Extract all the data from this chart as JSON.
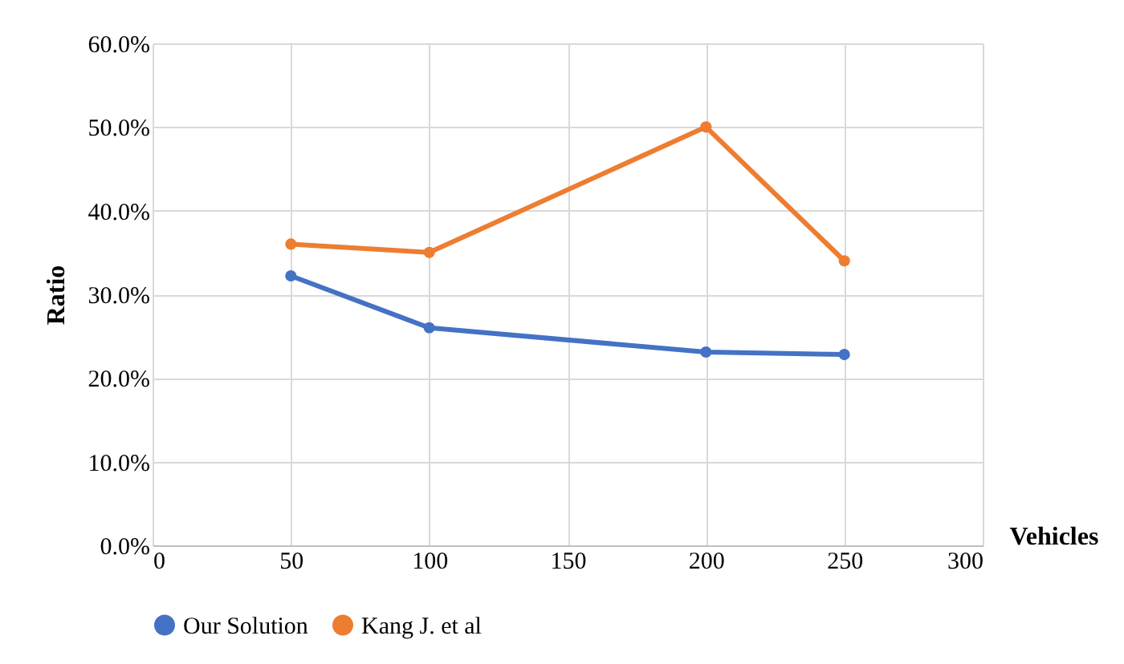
{
  "chart_data": {
    "type": "line",
    "xlabel": "Vehicles",
    "ylabel": "Ratio",
    "x": [
      50,
      100,
      200,
      250
    ],
    "series": [
      {
        "name": "Our Solution",
        "color": "#4472c4",
        "values": [
          32.2,
          26,
          23.1,
          22.8
        ]
      },
      {
        "name": "Kang J. et al",
        "color": "#ed7d31",
        "values": [
          36,
          35,
          50,
          34
        ]
      }
    ],
    "xlim": [
      0,
      300
    ],
    "xticks": [
      0,
      50,
      100,
      150,
      200,
      250,
      300
    ],
    "ylim": [
      0,
      60
    ],
    "yticks": [
      {
        "value": 0,
        "label": "0.0%"
      },
      {
        "value": 10,
        "label": "10.0%"
      },
      {
        "value": 20,
        "label": "20.0%"
      },
      {
        "value": 30,
        "label": "30.0%"
      },
      {
        "value": 40,
        "label": "40.0%"
      },
      {
        "value": 50,
        "label": "50.0%"
      },
      {
        "value": 60,
        "label": "60.0%"
      }
    ],
    "grid": true,
    "legend": "bottom",
    "marker": "circle",
    "line_style": "solid"
  }
}
